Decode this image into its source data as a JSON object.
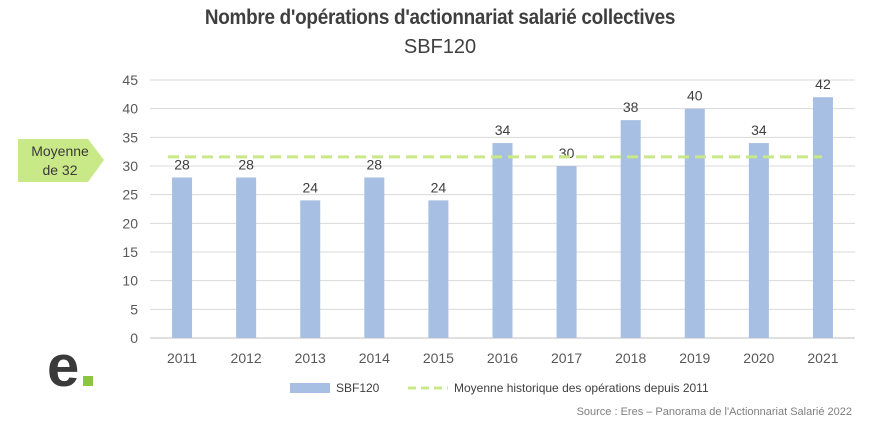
{
  "chart_data": {
    "type": "bar",
    "title": "Nombre d'opérations d'actionnariat salarié collectives",
    "subtitle": "SBF120",
    "categories": [
      "2011",
      "2012",
      "2013",
      "2014",
      "2015",
      "2016",
      "2017",
      "2018",
      "2019",
      "2020",
      "2021"
    ],
    "series": [
      {
        "name": "SBF120",
        "values": [
          28,
          28,
          24,
          28,
          24,
          34,
          30,
          38,
          40,
          34,
          42
        ],
        "color": "#a6bfe3"
      }
    ],
    "reference_line": {
      "name": "Moyenne historique des opérations depuis 2011",
      "value": 31.6,
      "color": "#c9e888",
      "style": "dashed"
    },
    "callout": {
      "line1": "Moyenne",
      "line2": "de 32",
      "color": "#c9e888"
    },
    "ylim": [
      0,
      45
    ],
    "yticks": [
      "0",
      "5",
      "10",
      "15",
      "20",
      "25",
      "30",
      "35",
      "40",
      "45"
    ],
    "grid": true,
    "legend_position": "bottom",
    "source": "Source : Eres – Panorama de l'Actionnariat Salarié 2022"
  },
  "logo": {
    "letter": "e",
    "color": "#3a3a3a",
    "accent": "#8cc63f"
  }
}
